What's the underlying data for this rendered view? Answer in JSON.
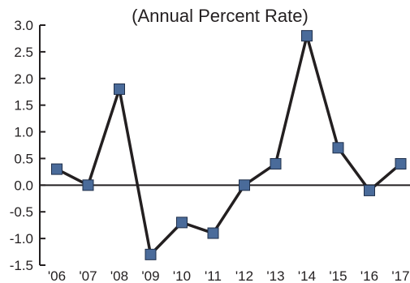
{
  "chart_data": {
    "type": "line",
    "title": "(Annual Percent Rate)",
    "categories": [
      "'06",
      "'07",
      "'08",
      "'09",
      "'10",
      "'11",
      "'12",
      "'13",
      "'14",
      "'15",
      "'16",
      "'17"
    ],
    "series": [
      {
        "values": [
          0.3,
          0.0,
          1.8,
          -1.3,
          -0.7,
          -0.9,
          0.0,
          0.4,
          2.8,
          0.7,
          -0.1,
          0.4
        ]
      }
    ],
    "ylim": [
      -1.5,
      3.0
    ],
    "yticks": [
      "3.0",
      "2.5",
      "2.0",
      "1.5",
      "1.0",
      "0.5",
      "0.0",
      "-0.5",
      "-1.0",
      "-1.5"
    ],
    "grid": false,
    "colors": {
      "line": "#231f20",
      "marker": "#4a6b9a",
      "marker_edge": "#1f2f4a",
      "axis": "#231f20"
    }
  }
}
